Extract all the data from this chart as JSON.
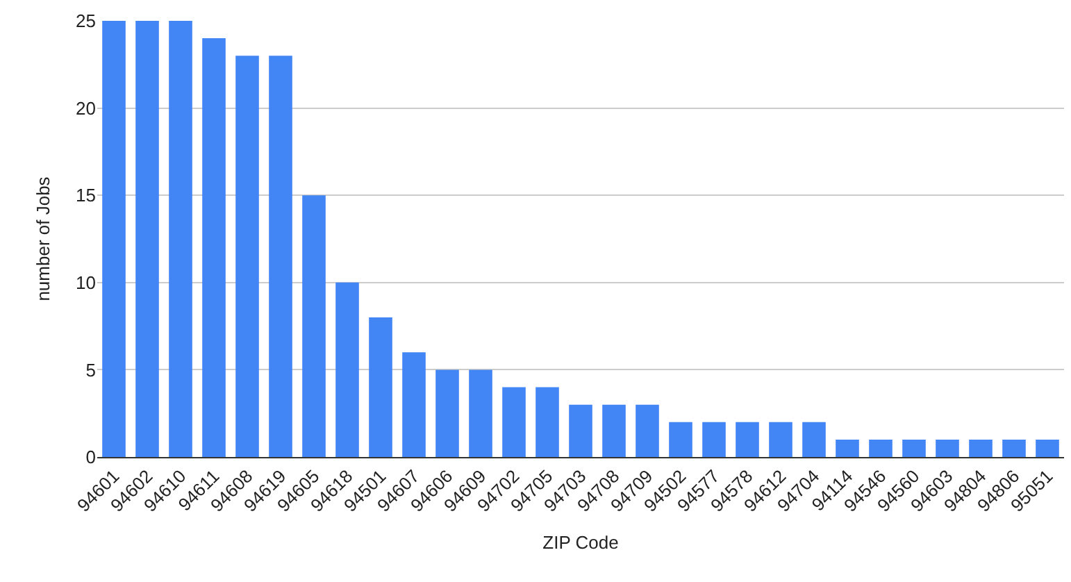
{
  "chart_data": {
    "type": "bar",
    "xlabel": "ZIP Code",
    "ylabel": "number of Jobs",
    "categories": [
      "94601",
      "94602",
      "94610",
      "94611",
      "94608",
      "94619",
      "94605",
      "94618",
      "94501",
      "94607",
      "94606",
      "94609",
      "94702",
      "94705",
      "94703",
      "94708",
      "94709",
      "94502",
      "94577",
      "94578",
      "94612",
      "94704",
      "94114",
      "94546",
      "94560",
      "94603",
      "94804",
      "94806",
      "95051"
    ],
    "values": [
      25,
      25,
      25,
      24,
      23,
      23,
      15,
      10,
      8,
      6,
      5,
      5,
      4,
      4,
      3,
      3,
      3,
      2,
      2,
      2,
      2,
      2,
      1,
      1,
      1,
      1,
      1,
      1,
      1
    ],
    "color": "#4285f4",
    "ylim": [
      0,
      25
    ],
    "yticks": [
      0,
      5,
      10,
      15,
      20,
      25
    ],
    "grid": "y"
  }
}
